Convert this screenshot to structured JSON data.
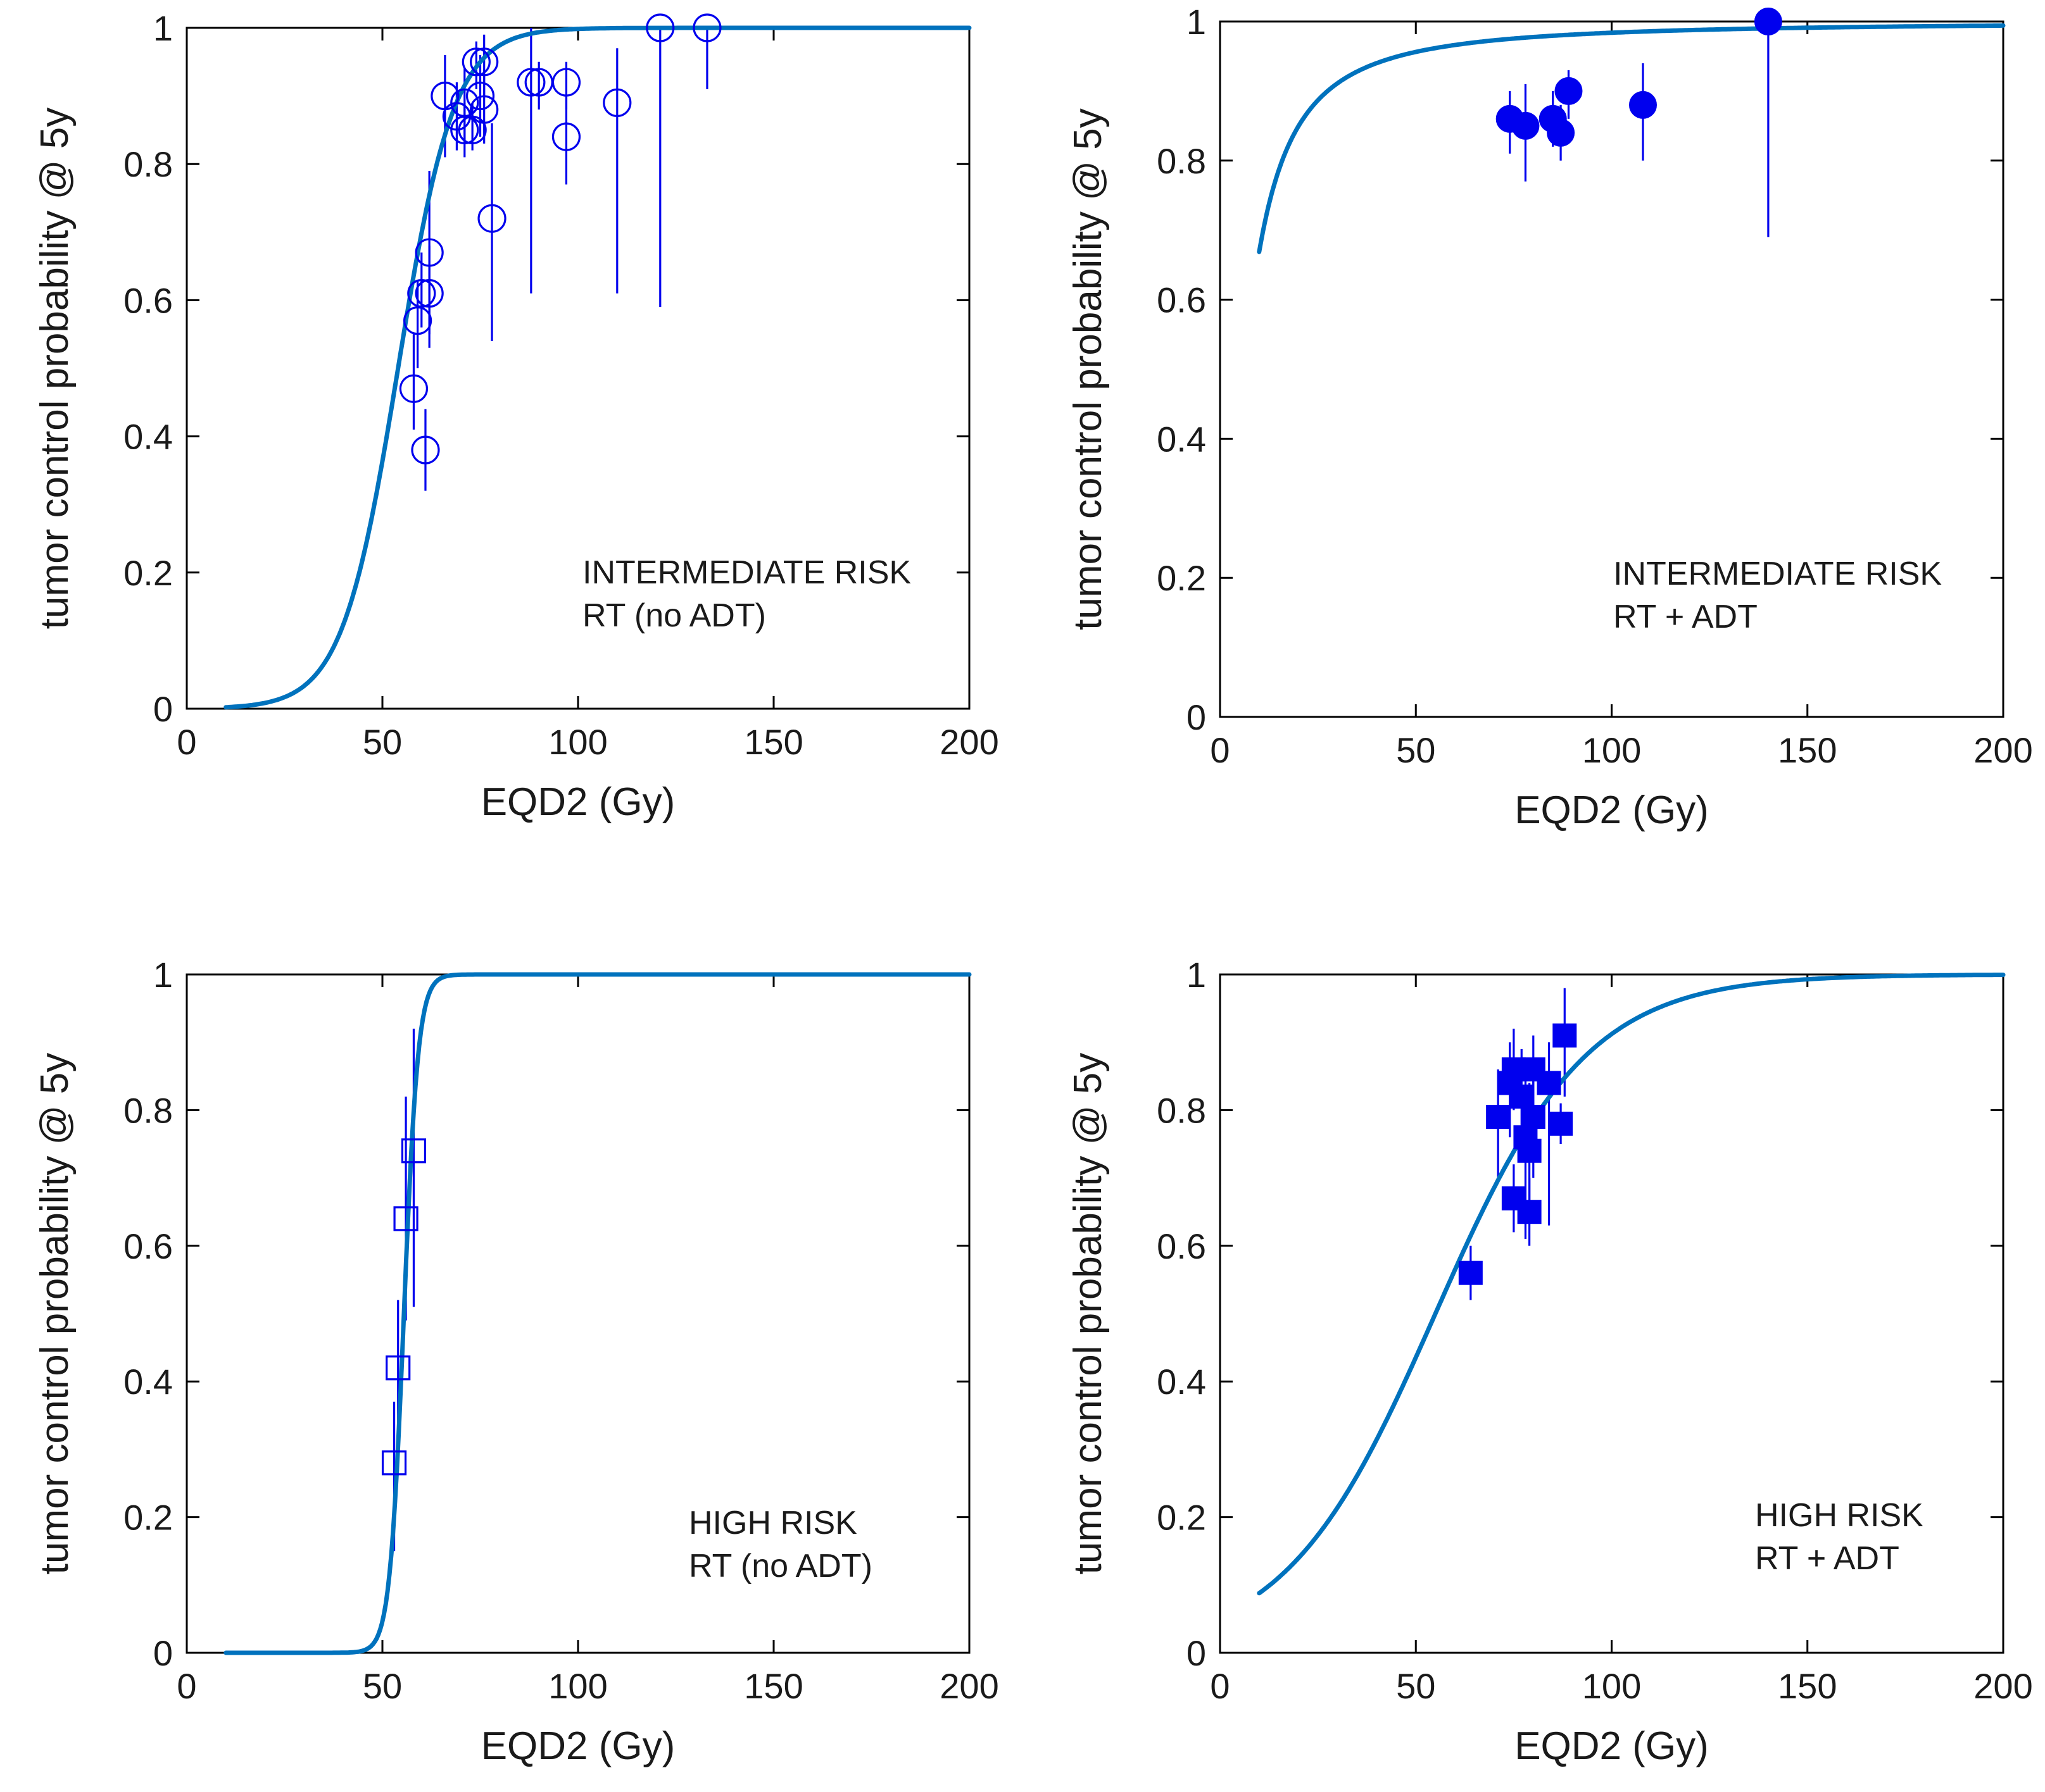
{
  "colors": {
    "curve": "#0072BD",
    "markers": "#0000EE",
    "axis": "#000000",
    "background": "#FFFFFF"
  },
  "chart_data": [
    {
      "type": "scatter",
      "panel": "top-left",
      "xlabel": "EQD2 (Gy)",
      "ylabel": "tumor control probability @ 5y",
      "xlim": [
        0,
        200
      ],
      "ylim": [
        0,
        1
      ],
      "xticks": [
        "0",
        "50",
        "100",
        "150",
        "200"
      ],
      "yticks": [
        "0",
        "0.2",
        "0.4",
        "0.6",
        "0.8",
        "1"
      ],
      "grid": false,
      "annotation": [
        "INTERMEDIATE RISK",
        "RT (no ADT)"
      ],
      "marker": "open-circle",
      "curve": {
        "model": "logistic",
        "d50": 54,
        "slope": 0.14,
        "start": 10,
        "end": 200
      },
      "points": [
        {
          "x": 58,
          "y": 0.47,
          "lo": 0.41,
          "hi": 0.55
        },
        {
          "x": 59,
          "y": 0.57,
          "lo": 0.5,
          "hi": 0.63
        },
        {
          "x": 60,
          "y": 0.61,
          "lo": 0.56,
          "hi": 0.67
        },
        {
          "x": 61,
          "y": 0.38,
          "lo": 0.32,
          "hi": 0.44
        },
        {
          "x": 62,
          "y": 0.61,
          "lo": 0.53,
          "hi": 0.68
        },
        {
          "x": 62,
          "y": 0.67,
          "lo": 0.55,
          "hi": 0.79
        },
        {
          "x": 66,
          "y": 0.9,
          "lo": 0.81,
          "hi": 0.96
        },
        {
          "x": 69,
          "y": 0.87,
          "lo": 0.82,
          "hi": 0.92
        },
        {
          "x": 71,
          "y": 0.85,
          "lo": 0.81,
          "hi": 0.89
        },
        {
          "x": 71,
          "y": 0.89,
          "lo": 0.83,
          "hi": 0.94
        },
        {
          "x": 73,
          "y": 0.85,
          "lo": 0.82,
          "hi": 0.89
        },
        {
          "x": 74,
          "y": 0.95,
          "lo": 0.91,
          "hi": 0.98
        },
        {
          "x": 75,
          "y": 0.9,
          "lo": 0.84,
          "hi": 0.96
        },
        {
          "x": 76,
          "y": 0.95,
          "lo": 0.9,
          "hi": 0.99
        },
        {
          "x": 76,
          "y": 0.88,
          "lo": 0.83,
          "hi": 0.93
        },
        {
          "x": 78,
          "y": 0.72,
          "lo": 0.54,
          "hi": 0.86
        },
        {
          "x": 88,
          "y": 0.92,
          "lo": 0.61,
          "hi": 1.0
        },
        {
          "x": 90,
          "y": 0.92,
          "lo": 0.88,
          "hi": 0.95
        },
        {
          "x": 97,
          "y": 0.92,
          "lo": 0.88,
          "hi": 0.95
        },
        {
          "x": 97,
          "y": 0.84,
          "lo": 0.77,
          "hi": 0.9
        },
        {
          "x": 110,
          "y": 0.89,
          "lo": 0.61,
          "hi": 0.97
        },
        {
          "x": 121,
          "y": 1.0,
          "lo": 0.59,
          "hi": 1.0
        },
        {
          "x": 133,
          "y": 1.0,
          "lo": 0.91,
          "hi": 1.0
        }
      ]
    },
    {
      "type": "scatter",
      "panel": "top-right",
      "xlabel": "EQD2 (Gy)",
      "ylabel": "tumor control probability @ 5y",
      "xlim": [
        0,
        200
      ],
      "ylim": [
        0,
        1
      ],
      "xticks": [
        "0",
        "50",
        "100",
        "150",
        "200"
      ],
      "yticks": [
        "0",
        "0.2",
        "0.4",
        "0.6",
        "0.8",
        "1"
      ],
      "grid": false,
      "annotation": [
        "INTERMEDIATE RISK",
        "RT + ADT"
      ],
      "marker": "filled-circle",
      "curve": {
        "model": "log-logistic",
        "d50": 6.22,
        "k": 1.48,
        "start": 10,
        "end": 200
      },
      "points": [
        {
          "x": 74,
          "y": 0.86,
          "lo": 0.81,
          "hi": 0.9
        },
        {
          "x": 78,
          "y": 0.85,
          "lo": 0.77,
          "hi": 0.91
        },
        {
          "x": 85,
          "y": 0.86,
          "lo": 0.82,
          "hi": 0.9
        },
        {
          "x": 87,
          "y": 0.84,
          "lo": 0.8,
          "hi": 0.88
        },
        {
          "x": 89,
          "y": 0.9,
          "lo": 0.86,
          "hi": 0.93
        },
        {
          "x": 108,
          "y": 0.88,
          "lo": 0.8,
          "hi": 0.94
        },
        {
          "x": 140,
          "y": 1.0,
          "lo": 0.69,
          "hi": 1.0
        }
      ]
    },
    {
      "type": "scatter",
      "panel": "bottom-left",
      "xlabel": "EQD2 (Gy)",
      "ylabel": "tumor control probability @ 5y",
      "xlim": [
        0,
        200
      ],
      "ylim": [
        0,
        1
      ],
      "xticks": [
        "0",
        "50",
        "100",
        "150",
        "200"
      ],
      "yticks": [
        "0",
        "0.2",
        "0.4",
        "0.6",
        "0.8",
        "1"
      ],
      "grid": false,
      "annotation": [
        "HIGH RISK",
        "RT (no ADT)"
      ],
      "marker": "open-square",
      "curve": {
        "model": "logistic",
        "d50": 55.5,
        "slope": 0.55,
        "start": 10,
        "end": 200
      },
      "points": [
        {
          "x": 53,
          "y": 0.28,
          "lo": 0.15,
          "hi": 0.37
        },
        {
          "x": 54,
          "y": 0.42,
          "lo": 0.3,
          "hi": 0.52
        },
        {
          "x": 56,
          "y": 0.64,
          "lo": 0.49,
          "hi": 0.82
        },
        {
          "x": 58,
          "y": 0.74,
          "lo": 0.51,
          "hi": 0.92
        }
      ]
    },
    {
      "type": "scatter",
      "panel": "bottom-right",
      "xlabel": "EQD2 (Gy)",
      "ylabel": "tumor control probability @ 5y",
      "xlim": [
        0,
        200
      ],
      "ylim": [
        0,
        1
      ],
      "xticks": [
        "0",
        "50",
        "100",
        "150",
        "200"
      ],
      "yticks": [
        "0",
        "0.2",
        "0.4",
        "0.6",
        "0.8",
        "1"
      ],
      "grid": false,
      "annotation": [
        "HIGH RISK",
        "RT + ADT"
      ],
      "marker": "filled-square",
      "curve": {
        "model": "logistic",
        "d50": 55,
        "slope": 0.052,
        "start": 10,
        "end": 200
      },
      "points": [
        {
          "x": 64,
          "y": 0.56,
          "lo": 0.52,
          "hi": 0.6
        },
        {
          "x": 71,
          "y": 0.79,
          "lo": 0.7,
          "hi": 0.86
        },
        {
          "x": 74,
          "y": 0.84,
          "lo": 0.76,
          "hi": 0.9
        },
        {
          "x": 75,
          "y": 0.86,
          "lo": 0.8,
          "hi": 0.92
        },
        {
          "x": 75,
          "y": 0.67,
          "lo": 0.62,
          "hi": 0.72
        },
        {
          "x": 77,
          "y": 0.82,
          "lo": 0.74,
          "hi": 0.89
        },
        {
          "x": 78,
          "y": 0.76,
          "lo": 0.61,
          "hi": 0.86
        },
        {
          "x": 79,
          "y": 0.65,
          "lo": 0.6,
          "hi": 0.7
        },
        {
          "x": 79,
          "y": 0.74,
          "lo": 0.64,
          "hi": 0.84
        },
        {
          "x": 80,
          "y": 0.86,
          "lo": 0.8,
          "hi": 0.91
        },
        {
          "x": 80,
          "y": 0.79,
          "lo": 0.7,
          "hi": 0.86
        },
        {
          "x": 84,
          "y": 0.84,
          "lo": 0.63,
          "hi": 0.9
        },
        {
          "x": 87,
          "y": 0.78,
          "lo": 0.75,
          "hi": 0.81
        },
        {
          "x": 88,
          "y": 0.91,
          "lo": 0.82,
          "hi": 0.98
        }
      ]
    }
  ]
}
